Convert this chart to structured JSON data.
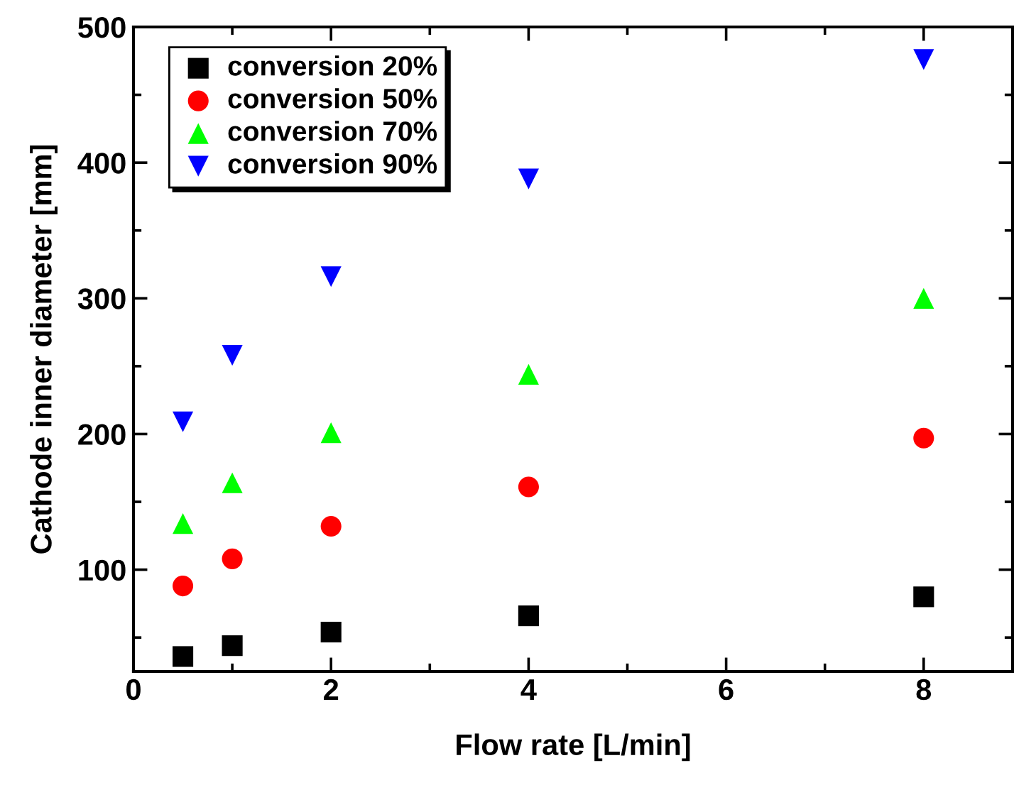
{
  "chart_data": {
    "type": "scatter",
    "xlabel": "Flow rate [L/min]",
    "ylabel": "Cathode inner diameter [mm]",
    "x": [
      0.5,
      1,
      2,
      4,
      8
    ],
    "series": [
      {
        "name": "conversion 20%",
        "color": "#000000",
        "marker": "square",
        "values": [
          36,
          44,
          54,
          66,
          80
        ]
      },
      {
        "name": "conversion 50%",
        "color": "#ff0000",
        "marker": "circle",
        "values": [
          88,
          108,
          132,
          161,
          197
        ]
      },
      {
        "name": "conversion 70%",
        "color": "#00ff00",
        "marker": "triangle",
        "values": [
          134,
          164,
          201,
          244,
          300
        ]
      },
      {
        "name": "conversion 90%",
        "color": "#0000ff",
        "marker": "triangle_down",
        "values": [
          209,
          258,
          316,
          388,
          476
        ]
      }
    ],
    "xlim": [
      0,
      8.9
    ],
    "ylim": [
      25,
      500
    ],
    "xticks": [
      0,
      {
        "value": 1,
        "label": null
      },
      2,
      {
        "value": 3,
        "label": null
      },
      4,
      {
        "value": 5,
        "label": null
      },
      6,
      {
        "value": 7,
        "label": null
      },
      8
    ],
    "yticks": [
      {
        "value": 50,
        "label": null
      },
      100,
      {
        "value": 150,
        "label": null
      },
      200,
      {
        "value": 250,
        "label": null
      },
      300,
      {
        "value": 350,
        "label": null
      },
      400,
      {
        "value": 450,
        "label": null
      },
      500
    ],
    "grid": false,
    "legend": "top left"
  }
}
